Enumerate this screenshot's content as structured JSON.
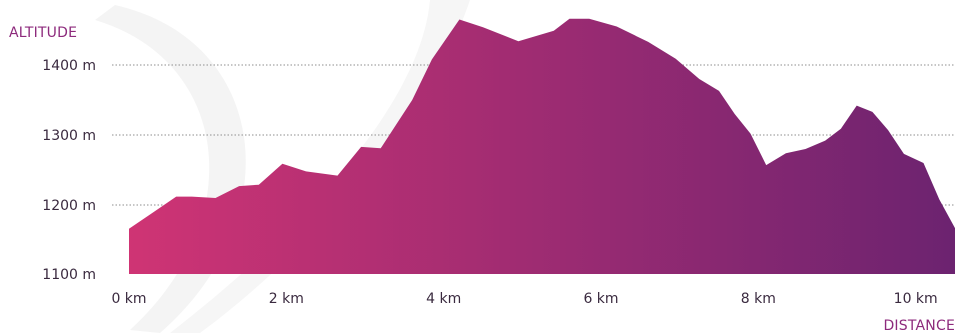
{
  "chart_data": {
    "type": "area",
    "title": "",
    "ylabel": "ALTITUDE",
    "xlabel": "DISTANCE",
    "x_unit": "km",
    "y_unit": "m",
    "xlim": [
      0,
      10.5
    ],
    "ylim": [
      1090,
      1470
    ],
    "grid": true,
    "x_ticks": [
      {
        "value": 0,
        "label": "0 km"
      },
      {
        "value": 2,
        "label": "2 km"
      },
      {
        "value": 4,
        "label": "4 km"
      },
      {
        "value": 6,
        "label": "6 km"
      },
      {
        "value": 8,
        "label": "8 km"
      },
      {
        "value": 10,
        "label": "10 km"
      }
    ],
    "y_ticks": [
      {
        "value": 1400,
        "label": "1400 m",
        "grid": true
      },
      {
        "value": 1300,
        "label": "1300 m",
        "grid": true
      },
      {
        "value": 1200,
        "label": "1200 m",
        "grid": true
      },
      {
        "value": 1100,
        "label": "1100 m",
        "grid": false
      }
    ],
    "gradient_colors": [
      "#cf3474",
      "#6c2370"
    ],
    "series": [
      {
        "x": [
          0,
          0.3,
          0.6,
          0.8,
          1.1,
          1.4,
          1.65,
          1.95,
          2.25,
          2.65,
          2.95,
          3.2,
          3.6,
          3.85,
          4.2,
          4.5,
          4.95,
          5.4,
          5.6,
          5.85,
          6.2,
          6.6,
          6.95,
          7.25,
          7.5,
          7.7,
          7.9,
          8.1,
          8.35,
          8.6,
          8.85,
          9.05,
          9.25,
          9.45,
          9.65,
          9.85,
          10.1,
          10.3,
          10.5
        ],
        "y": [
          1166,
          1189,
          1212,
          1212,
          1210,
          1227,
          1229,
          1259,
          1248,
          1242,
          1283,
          1281,
          1350,
          1408,
          1465,
          1454,
          1434,
          1449,
          1466,
          1466,
          1455,
          1433,
          1409,
          1380,
          1363,
          1330,
          1302,
          1257,
          1274,
          1280,
          1292,
          1309,
          1342,
          1333,
          1307,
          1273,
          1260,
          1208,
          1167
        ]
      }
    ]
  }
}
